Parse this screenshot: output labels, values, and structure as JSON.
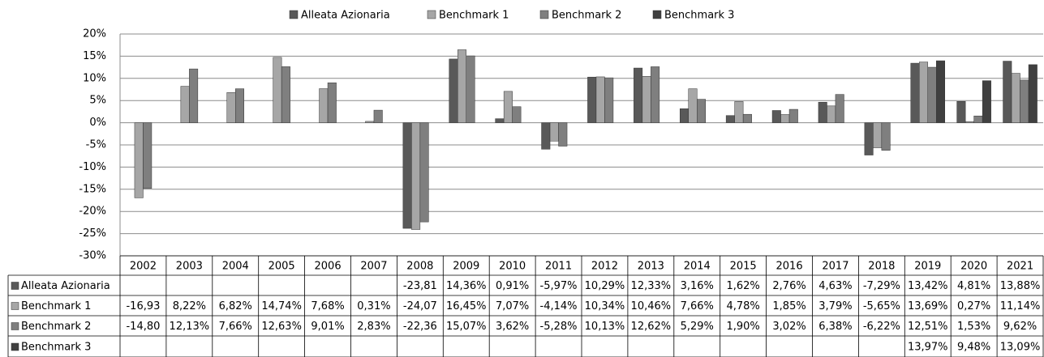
{
  "chart_data": {
    "type": "bar",
    "categories": [
      "2002",
      "2003",
      "2004",
      "2005",
      "2006",
      "2007",
      "2008",
      "2009",
      "2010",
      "2011",
      "2012",
      "2013",
      "2014",
      "2015",
      "2016",
      "2017",
      "2018",
      "2019",
      "2020",
      "2021"
    ],
    "series": [
      {
        "name": "Alleata Azionaria",
        "color": "#595959",
        "values": [
          null,
          null,
          null,
          null,
          null,
          null,
          -23.81,
          14.36,
          0.91,
          -5.97,
          10.29,
          12.33,
          3.16,
          1.62,
          2.76,
          4.63,
          -7.29,
          13.42,
          4.81,
          13.88
        ],
        "value_labels": [
          null,
          null,
          null,
          null,
          null,
          null,
          "-23,81",
          "14,36%",
          "0,91%",
          "-5,97%",
          "10,29%",
          "12,33%",
          "3,16%",
          "1,62%",
          "2,76%",
          "4,63%",
          "-7,29%",
          "13,42%",
          "4,81%",
          "13,88%"
        ]
      },
      {
        "name": "Benchmark 1",
        "color": "#a6a6a6",
        "values": [
          -16.93,
          8.22,
          6.82,
          14.74,
          7.68,
          0.31,
          -24.07,
          16.45,
          7.07,
          -4.14,
          10.34,
          10.46,
          7.66,
          4.78,
          1.85,
          3.79,
          -5.65,
          13.69,
          0.27,
          11.14
        ],
        "value_labels": [
          "-16,93",
          "8,22%",
          "6,82%",
          "14,74%",
          "7,68%",
          "0,31%",
          "-24,07",
          "16,45%",
          "7,07%",
          "-4,14%",
          "10,34%",
          "10,46%",
          "7,66%",
          "4,78%",
          "1,85%",
          "3,79%",
          "-5,65%",
          "13,69%",
          "0,27%",
          "11,14%"
        ]
      },
      {
        "name": "Benchmark 2",
        "color": "#7f7f7f",
        "values": [
          -14.8,
          12.13,
          7.66,
          12.63,
          9.01,
          2.83,
          -22.36,
          15.07,
          3.62,
          -5.28,
          10.13,
          12.62,
          5.29,
          1.9,
          3.02,
          6.38,
          -6.22,
          12.51,
          1.53,
          9.62
        ],
        "value_labels": [
          "-14,80",
          "12,13%",
          "7,66%",
          "12,63%",
          "9,01%",
          "2,83%",
          "-22,36",
          "15,07%",
          "3,62%",
          "-5,28%",
          "10,13%",
          "12,62%",
          "5,29%",
          "1,90%",
          "3,02%",
          "6,38%",
          "-6,22%",
          "12,51%",
          "1,53%",
          "9,62%"
        ]
      },
      {
        "name": "Benchmark 3",
        "color": "#404040",
        "values": [
          null,
          null,
          null,
          null,
          null,
          null,
          null,
          null,
          null,
          null,
          null,
          null,
          null,
          null,
          null,
          null,
          null,
          13.97,
          9.48,
          13.09
        ],
        "value_labels": [
          null,
          null,
          null,
          null,
          null,
          null,
          null,
          null,
          null,
          null,
          null,
          null,
          null,
          null,
          null,
          null,
          null,
          "13,97%",
          "9,48%",
          "13,09%"
        ]
      }
    ],
    "ylim": [
      -30,
      20
    ],
    "yticks": [
      {
        "value": -30,
        "label": "-30%"
      },
      {
        "value": -25,
        "label": "-25%"
      },
      {
        "value": -20,
        "label": "-20%"
      },
      {
        "value": -15,
        "label": "-15%"
      },
      {
        "value": -10,
        "label": "-10%"
      },
      {
        "value": -5,
        "label": "-5%"
      },
      {
        "value": 0,
        "label": "0%"
      },
      {
        "value": 5,
        "label": "5%"
      },
      {
        "value": 10,
        "label": "10%"
      },
      {
        "value": 15,
        "label": "15%"
      },
      {
        "value": 20,
        "label": "20%"
      }
    ],
    "grid": true
  }
}
